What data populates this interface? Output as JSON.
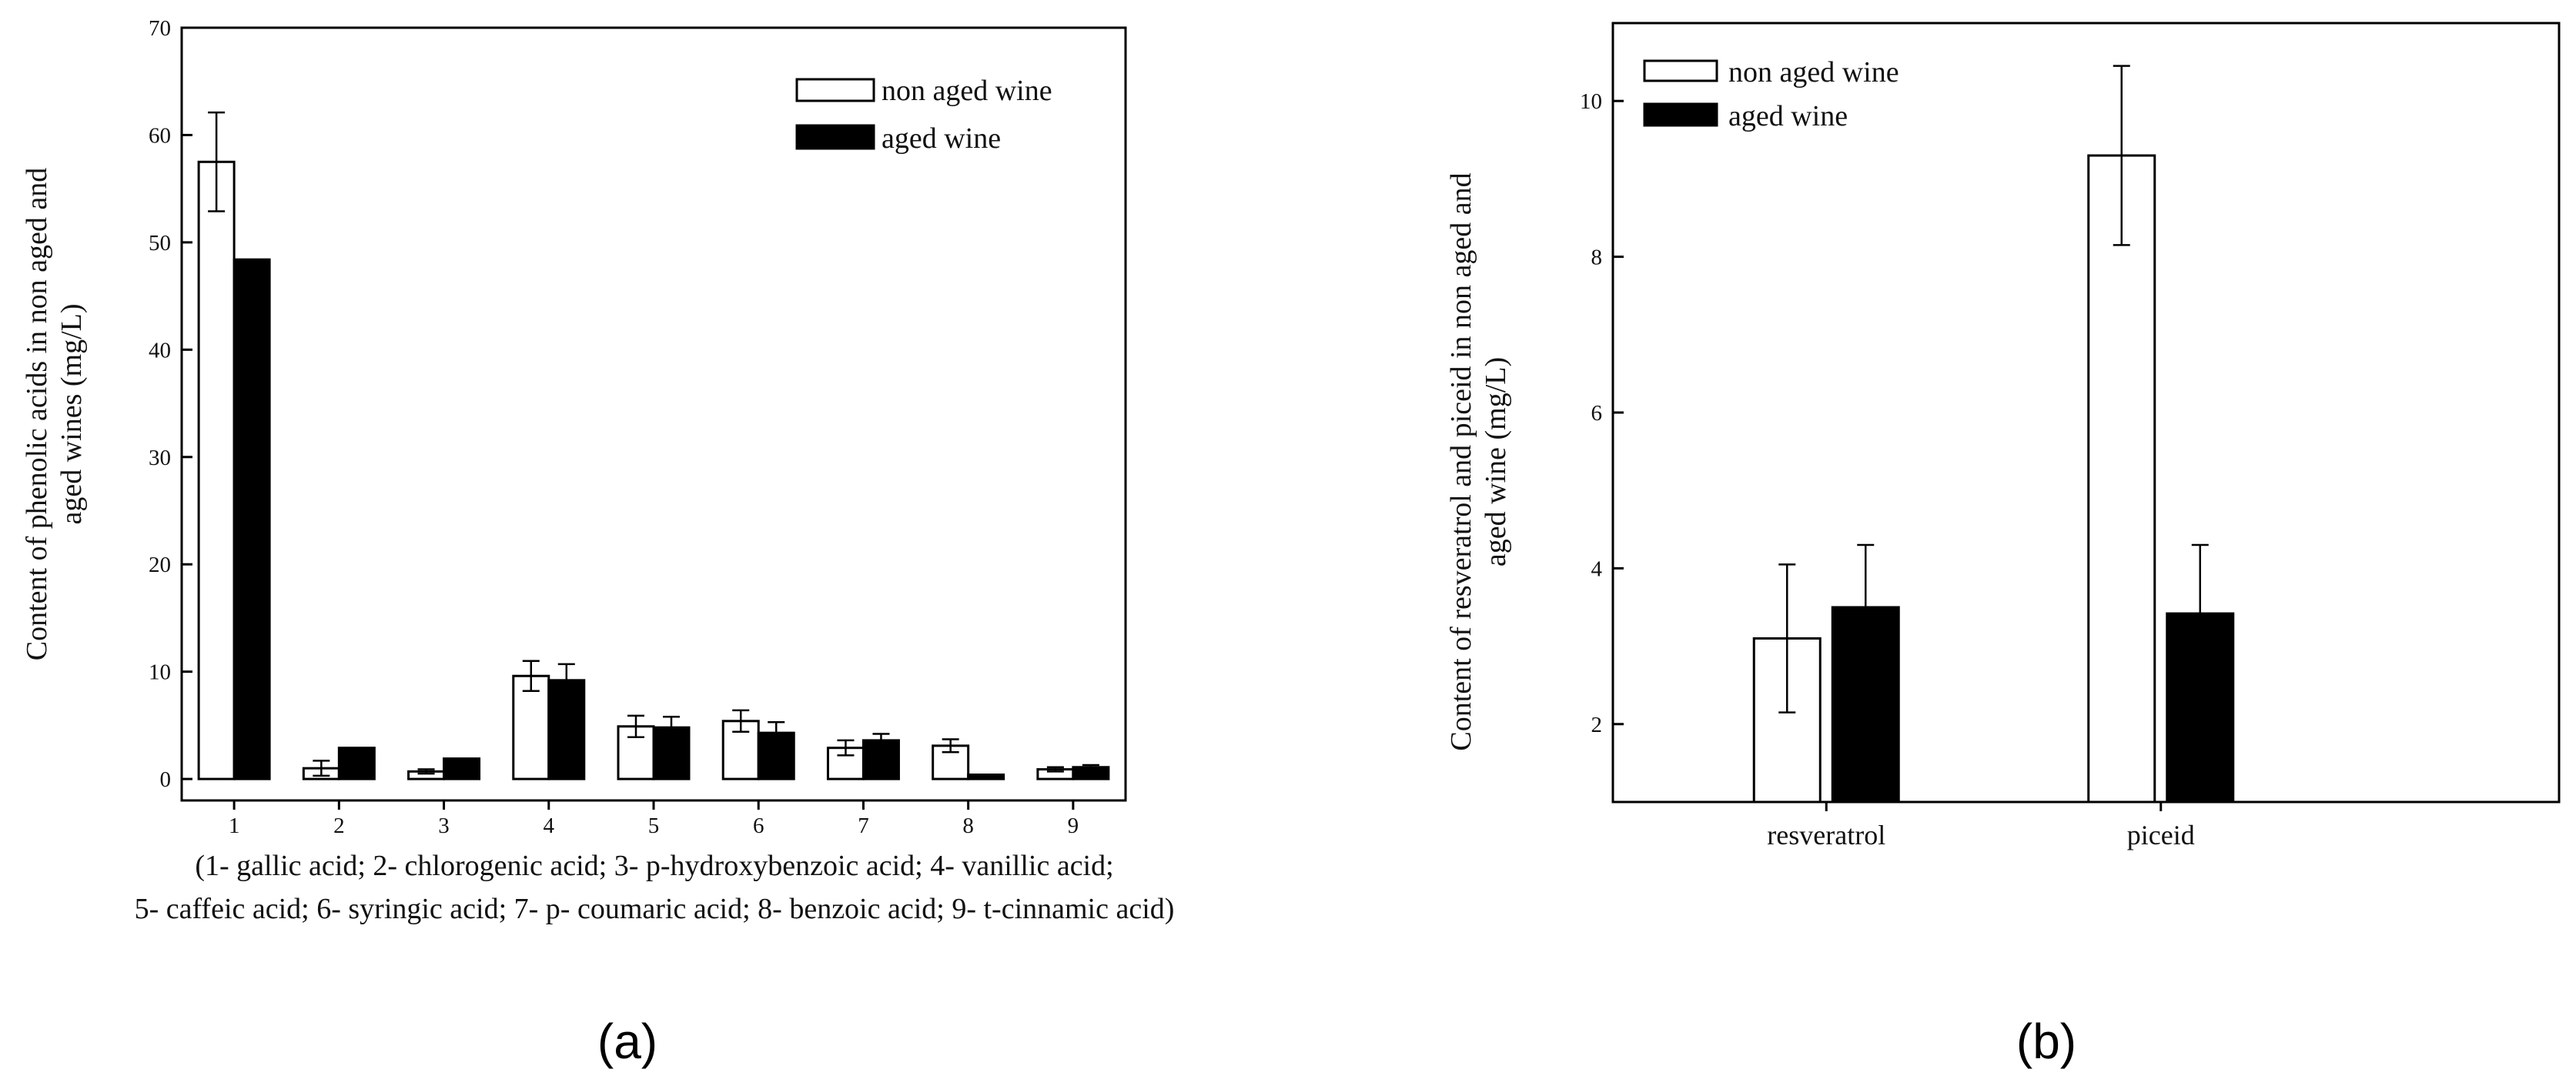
{
  "chart_data": [
    {
      "type": "bar",
      "panel_label": "(a)",
      "categories": [
        "1",
        "2",
        "3",
        "4",
        "5",
        "6",
        "7",
        "8",
        "9"
      ],
      "series": [
        {
          "name": "non aged wine",
          "values": [
            57.5,
            1.0,
            0.7,
            9.6,
            4.9,
            5.4,
            2.9,
            3.1,
            0.9
          ],
          "errors": [
            4.6,
            0.7,
            0.2,
            1.4,
            1.0,
            1.0,
            0.7,
            0.6,
            0.2
          ],
          "fill": "#ffffff"
        },
        {
          "name": "aged wine",
          "values": [
            48.4,
            2.9,
            1.9,
            9.2,
            4.8,
            4.3,
            3.6,
            0.4,
            1.1
          ],
          "errors": [
            0,
            0,
            0,
            1.5,
            1.0,
            1.0,
            0.6,
            0,
            0.2
          ],
          "fill": "#000000"
        }
      ],
      "xlabel_lines": [
        "(1- gallic acid; 2- chlorogenic acid; 3- p-hydroxybenzoic acid; 4- vanillic acid;",
        "5- caffeic acid; 6- syringic acid; 7- p- coumaric acid; 8- benzoic acid; 9- t-cinnamic acid)"
      ],
      "ylabel_lines": [
        "Content of phenolic acids in non aged and",
        "aged wines (mg/L)"
      ],
      "ylim": [
        -2,
        70
      ],
      "yticks": [
        0,
        10,
        20,
        30,
        40,
        50,
        60,
        70
      ],
      "legend_position": "top-right"
    },
    {
      "type": "bar",
      "panel_label": "(b)",
      "categories": [
        "resveratrol",
        "piceid"
      ],
      "series": [
        {
          "name": "non aged wine",
          "values": [
            3.1,
            9.3
          ],
          "errors": [
            0.95,
            1.15
          ],
          "fill": "#ffffff"
        },
        {
          "name": "aged wine",
          "values": [
            3.5,
            3.42
          ],
          "errors": [
            0.8,
            0.88
          ],
          "fill": "#000000"
        }
      ],
      "ylabel_lines": [
        "Content of resveratrol and piceid in non aged and",
        "aged wine (mg/L)"
      ],
      "ylim": [
        1,
        11
      ],
      "yticks": [
        2,
        4,
        6,
        8,
        10
      ],
      "legend_position": "top-left"
    }
  ]
}
